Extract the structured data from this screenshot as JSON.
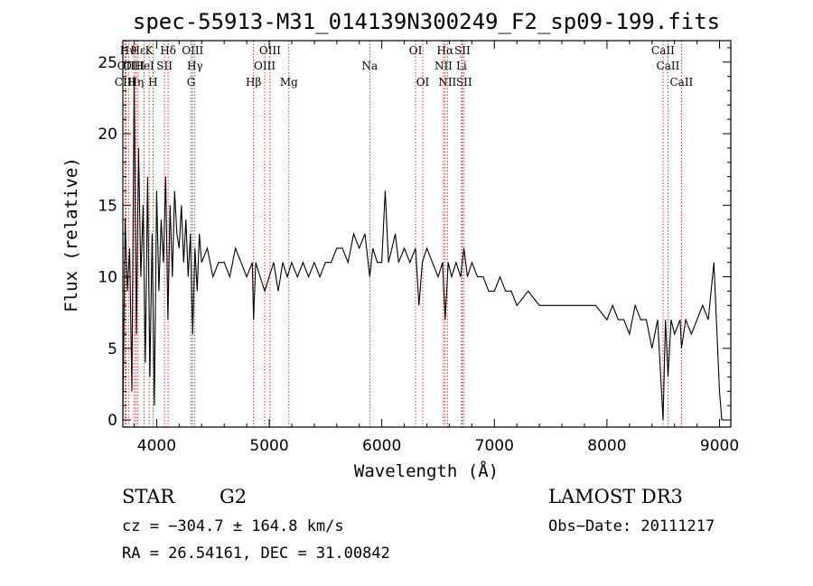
{
  "chart_data": {
    "type": "line",
    "title": "spec-55913-M31_014139N300249_F2_sp09-199.fits",
    "xlabel": "Wavelength (Å)",
    "ylabel": "Flux (relative)",
    "xlim": [
      3700,
      9100
    ],
    "ylim": [
      -0.5,
      26.5
    ],
    "xticks": [
      4000,
      5000,
      6000,
      7000,
      8000,
      9000
    ],
    "yticks": [
      0,
      5,
      10,
      15,
      20,
      25
    ],
    "grid": false,
    "line_color": "#000000",
    "marker_color": "#cc0000",
    "lines": [
      {
        "label": "Hϑ",
        "x": 3750,
        "row": 0
      },
      {
        "label": "OII",
        "x": 3727,
        "row": 1
      },
      {
        "label": "CIII",
        "x": 3720,
        "row": 2
      },
      {
        "label": "OIII",
        "x": 3798,
        "row": 1
      },
      {
        "label": "Hε",
        "x": 3835,
        "row": 0
      },
      {
        "label": "HeI",
        "x": 3889,
        "row": 1
      },
      {
        "label": "Hη",
        "x": 3815,
        "row": 2
      },
      {
        "label": "K",
        "x": 3934,
        "row": 0
      },
      {
        "label": "H",
        "x": 3968,
        "row": 2
      },
      {
        "label": "SII",
        "x": 4070,
        "row": 1
      },
      {
        "label": "Hδ",
        "x": 4102,
        "row": 0
      },
      {
        "label": "OIII",
        "x": 4320,
        "row": 0
      },
      {
        "label": "Hγ",
        "x": 4340,
        "row": 1
      },
      {
        "label": "G",
        "x": 4306,
        "row": 2
      },
      {
        "label": "Hβ",
        "x": 4861,
        "row": 2
      },
      {
        "label": "OIII",
        "x": 5007,
        "row": 0
      },
      {
        "label": "OIII",
        "x": 4960,
        "row": 1
      },
      {
        "label": "Mg",
        "x": 5175,
        "row": 2
      },
      {
        "label": "Na",
        "x": 5893,
        "row": 1
      },
      {
        "label": "OI",
        "x": 6300,
        "row": 0
      },
      {
        "label": "OI",
        "x": 6364,
        "row": 2
      },
      {
        "label": "Hα",
        "x": 6563,
        "row": 0
      },
      {
        "label": "NII",
        "x": 6548,
        "row": 1
      },
      {
        "label": "NII",
        "x": 6583,
        "row": 2
      },
      {
        "label": "SII",
        "x": 6716,
        "row": 0
      },
      {
        "label": "Li",
        "x": 6708,
        "row": 1
      },
      {
        "label": "SII",
        "x": 6731,
        "row": 2
      },
      {
        "label": "CaII",
        "x": 8498,
        "row": 0
      },
      {
        "label": "CaII",
        "x": 8542,
        "row": 1
      },
      {
        "label": "CaII",
        "x": 8662,
        "row": 2
      }
    ],
    "spectrum": {
      "x": [
        3700,
        3720,
        3740,
        3760,
        3780,
        3800,
        3820,
        3840,
        3860,
        3880,
        3900,
        3920,
        3940,
        3960,
        3980,
        4000,
        4020,
        4040,
        4060,
        4080,
        4100,
        4120,
        4140,
        4160,
        4180,
        4200,
        4220,
        4240,
        4260,
        4280,
        4300,
        4320,
        4340,
        4360,
        4380,
        4400,
        4450,
        4500,
        4550,
        4600,
        4650,
        4700,
        4750,
        4800,
        4850,
        4861,
        4880,
        4920,
        4960,
        5000,
        5040,
        5080,
        5120,
        5160,
        5200,
        5250,
        5300,
        5350,
        5400,
        5450,
        5500,
        5550,
        5600,
        5650,
        5700,
        5750,
        5800,
        5850,
        5893,
        5920,
        5960,
        6000,
        6030,
        6060,
        6090,
        6120,
        6150,
        6200,
        6250,
        6300,
        6330,
        6360,
        6400,
        6450,
        6500,
        6540,
        6563,
        6590,
        6620,
        6660,
        6700,
        6730,
        6760,
        6800,
        6850,
        6900,
        6950,
        7000,
        7050,
        7100,
        7150,
        7200,
        7300,
        7400,
        7500,
        7600,
        7700,
        7800,
        7900,
        8000,
        8050,
        8100,
        8150,
        8200,
        8250,
        8300,
        8350,
        8400,
        8450,
        8498,
        8520,
        8542,
        8570,
        8600,
        8650,
        8662,
        8700,
        8750,
        8800,
        8850,
        8900,
        8950,
        9000,
        9020,
        9040
      ],
      "y": [
        0,
        14,
        9,
        12,
        2,
        24,
        6,
        19,
        10,
        15,
        4,
        17,
        3,
        13,
        1,
        16,
        9,
        14,
        11,
        17,
        7,
        15,
        10,
        16,
        13,
        12,
        15,
        11,
        14,
        10,
        13,
        6,
        12,
        9,
        13,
        11,
        12,
        10,
        11,
        11,
        10,
        12,
        11,
        10,
        11,
        7,
        11,
        10,
        9,
        10,
        11,
        9,
        11,
        10,
        11,
        10,
        11,
        10,
        11,
        10,
        11,
        11,
        12,
        12,
        11,
        13,
        12,
        13,
        10,
        12,
        11,
        11,
        16,
        11,
        12,
        13,
        11,
        12,
        11,
        12,
        8,
        11,
        12,
        11,
        10,
        11,
        7,
        11,
        10,
        11,
        10,
        12,
        10,
        11,
        10,
        10,
        9,
        9,
        10,
        9,
        9,
        8,
        9,
        8,
        8,
        8,
        8,
        8,
        8,
        7,
        8,
        7,
        7,
        6,
        8,
        7,
        7,
        5,
        7,
        0,
        7,
        3,
        7,
        6,
        7,
        5,
        7,
        6,
        7,
        8,
        7,
        11,
        2,
        0,
        0
      ]
    }
  },
  "info": {
    "object_type": "STAR",
    "subclass": "G2",
    "survey": "LAMOST DR3",
    "cz": "cz = −304.7 ± 164.8 km/s",
    "obs_date": "Obs−Date: 20111217",
    "coords": "RA =  26.54161, DEC =  31.00842"
  }
}
